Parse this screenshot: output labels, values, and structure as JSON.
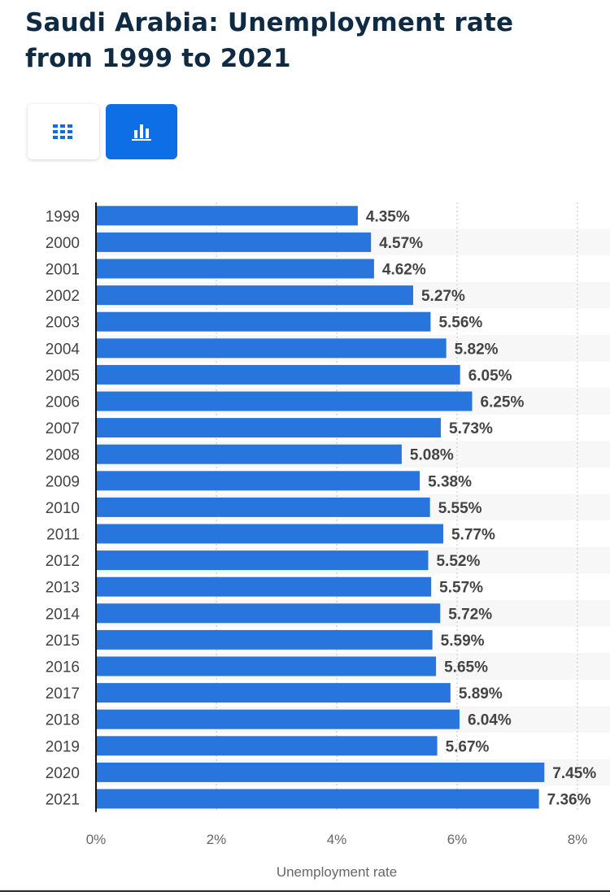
{
  "title": "Saudi Arabia: Unemployment rate from 1999 to 2021",
  "view_toggle": {
    "table_icon": "grid-icon",
    "chart_icon": "bar-chart-icon",
    "active": "chart"
  },
  "colors": {
    "bar": "#2876dd",
    "title": "#0f2a43",
    "active_button": "#0e6ee6",
    "stripe": "#f7f7f7",
    "label": "#444444"
  },
  "chart_data": {
    "type": "bar",
    "orientation": "horizontal",
    "categories": [
      "1999",
      "2000",
      "2001",
      "2002",
      "2003",
      "2004",
      "2005",
      "2006",
      "2007",
      "2008",
      "2009",
      "2010",
      "2011",
      "2012",
      "2013",
      "2014",
      "2015",
      "2016",
      "2017",
      "2018",
      "2019",
      "2020",
      "2021"
    ],
    "values": [
      4.35,
      4.57,
      4.62,
      5.27,
      5.56,
      5.82,
      6.05,
      6.25,
      5.73,
      5.08,
      5.38,
      5.55,
      5.77,
      5.52,
      5.57,
      5.72,
      5.59,
      5.65,
      5.89,
      6.04,
      5.67,
      7.45,
      7.36
    ],
    "value_labels": [
      "4.35%",
      "4.57%",
      "4.62%",
      "5.27%",
      "5.56%",
      "5.82%",
      "6.05%",
      "6.25%",
      "5.73%",
      "5.08%",
      "5.38%",
      "5.55%",
      "5.77%",
      "5.52%",
      "5.57%",
      "5.72%",
      "5.59%",
      "5.65%",
      "5.89%",
      "6.04%",
      "5.67%",
      "7.45%",
      "7.36%"
    ],
    "xlim": [
      0,
      8
    ],
    "x_ticks": [
      "0%",
      "2%",
      "4%",
      "6%",
      "8%"
    ],
    "xlabel": "Unemployment rate",
    "ylabel": "",
    "grid": "vertical dotted",
    "legend": "none"
  }
}
